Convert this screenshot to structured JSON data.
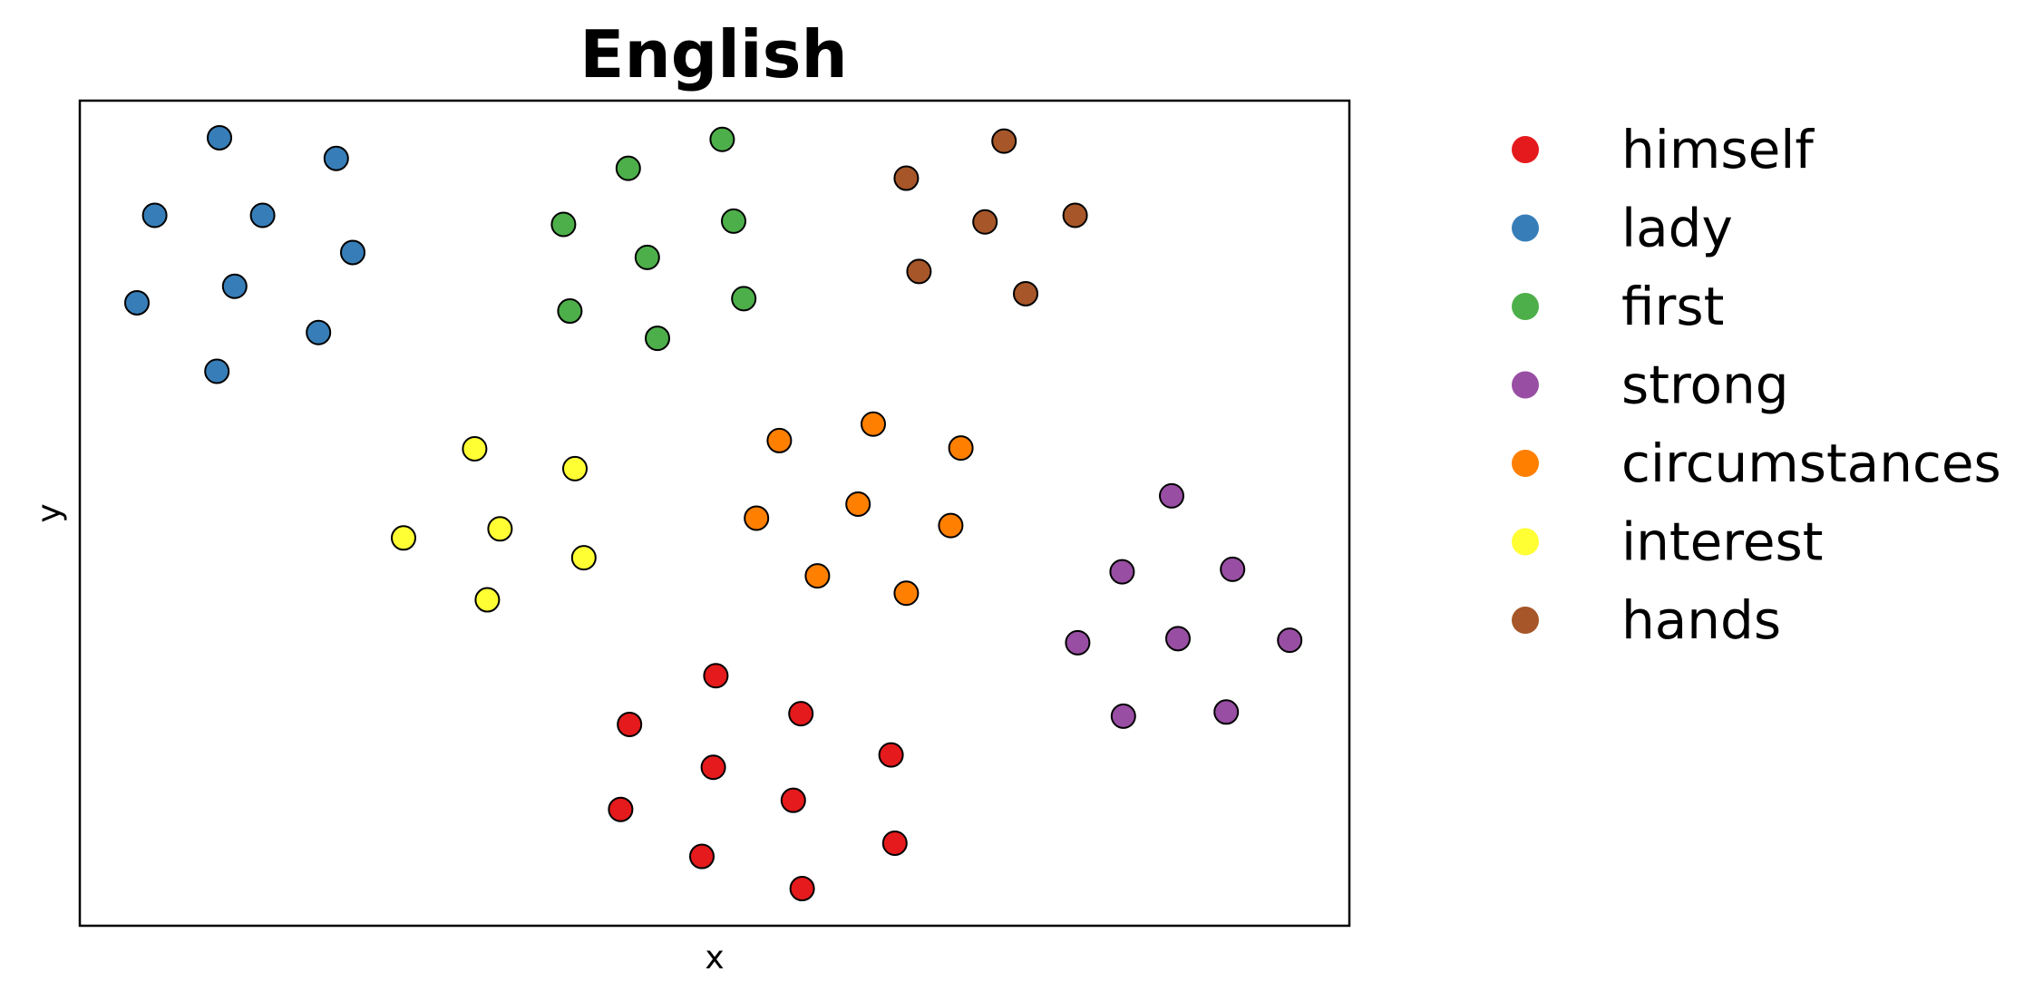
{
  "chart_data": {
    "type": "scatter",
    "title": "English",
    "xlabel": "x",
    "ylabel": "y",
    "xlim": [
      0,
      100
    ],
    "ylim": [
      0,
      100
    ],
    "grid": false,
    "legend_position": "outside-right",
    "show_ticks": false,
    "series": [
      {
        "name": "himself",
        "color": "#e41a1c",
        "points": [
          [
            50.1,
            30.3
          ],
          [
            56.8,
            25.7
          ],
          [
            43.3,
            24.4
          ],
          [
            63.9,
            20.7
          ],
          [
            49.9,
            19.2
          ],
          [
            56.2,
            15.2
          ],
          [
            42.6,
            14.1
          ],
          [
            64.2,
            10.0
          ],
          [
            49.0,
            8.4
          ],
          [
            56.9,
            4.5
          ]
        ]
      },
      {
        "name": "lady",
        "color": "#377eb8",
        "points": [
          [
            11.0,
            95.5
          ],
          [
            20.2,
            93.0
          ],
          [
            5.9,
            86.1
          ],
          [
            14.4,
            86.1
          ],
          [
            21.5,
            81.6
          ],
          [
            12.2,
            77.5
          ],
          [
            4.5,
            75.5
          ],
          [
            18.8,
            71.9
          ],
          [
            10.8,
            67.2
          ]
        ]
      },
      {
        "name": "first",
        "color": "#4daf4a",
        "points": [
          [
            50.6,
            95.3
          ],
          [
            43.2,
            91.8
          ],
          [
            51.5,
            85.4
          ],
          [
            38.1,
            85.0
          ],
          [
            44.7,
            81.0
          ],
          [
            52.3,
            76.0
          ],
          [
            38.6,
            74.5
          ],
          [
            45.5,
            71.2
          ]
        ]
      },
      {
        "name": "strong",
        "color": "#984ea3",
        "points": [
          [
            86.0,
            52.1
          ],
          [
            82.1,
            42.9
          ],
          [
            90.8,
            43.2
          ],
          [
            78.6,
            34.3
          ],
          [
            86.5,
            34.8
          ],
          [
            95.3,
            34.6
          ],
          [
            82.2,
            25.4
          ],
          [
            90.3,
            25.9
          ]
        ]
      },
      {
        "name": "circumstances",
        "color": "#ff7f00",
        "points": [
          [
            62.5,
            60.8
          ],
          [
            55.1,
            58.8
          ],
          [
            69.4,
            57.9
          ],
          [
            61.3,
            51.1
          ],
          [
            53.3,
            49.4
          ],
          [
            68.6,
            48.5
          ],
          [
            58.1,
            42.4
          ],
          [
            65.1,
            40.3
          ]
        ]
      },
      {
        "name": "interest",
        "color": "#ffff33",
        "points": [
          [
            31.1,
            57.8
          ],
          [
            39.0,
            55.4
          ],
          [
            33.1,
            48.1
          ],
          [
            25.5,
            47.0
          ],
          [
            39.7,
            44.6
          ],
          [
            32.1,
            39.5
          ]
        ]
      },
      {
        "name": "hands",
        "color": "#a65628",
        "points": [
          [
            72.8,
            95.1
          ],
          [
            65.1,
            90.6
          ],
          [
            71.3,
            85.3
          ],
          [
            78.4,
            86.1
          ],
          [
            66.1,
            79.3
          ],
          [
            74.5,
            76.6
          ]
        ]
      }
    ]
  }
}
